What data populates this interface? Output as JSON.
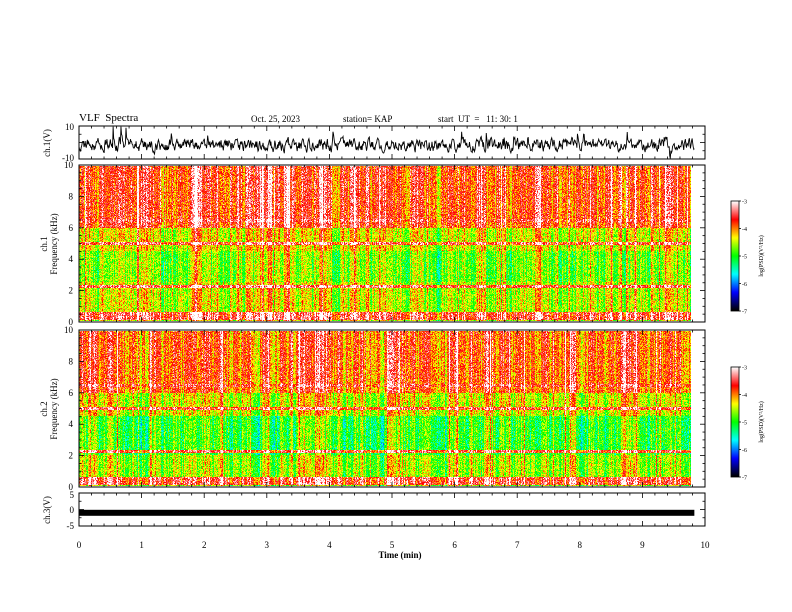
{
  "header": {
    "title": "VLF  Spectra",
    "date": "Oct. 25, 2023",
    "station": "station= KAP",
    "start": "start  UT  =   11: 30: 1"
  },
  "colors": {
    "line": "#000000",
    "colormap": [
      "#000000",
      "#0000ff",
      "#00ffff",
      "#00ff00",
      "#ffff00",
      "#ff0000",
      "#ffffff"
    ]
  },
  "chart_data": [
    {
      "type": "line",
      "panel": "ch1-waveform",
      "ylabel": "ch.1(V)",
      "ylim": [
        -10,
        10
      ],
      "yticks": [
        "10",
        "-10"
      ],
      "xlim": [
        0,
        10
      ],
      "x_data_end": 9.83
    },
    {
      "type": "heatmap",
      "panel": "ch1-spectrogram",
      "ylabel": "ch.1\nFrequency  (kHz)",
      "ylim": [
        0,
        10
      ],
      "yticks": [
        "0",
        "2",
        "4",
        "6",
        "8",
        "10"
      ],
      "xlim": [
        0,
        10
      ],
      "x_data_end": 9.83,
      "colorbar": {
        "label": "log(PSD)(V²/Hz)",
        "range": [
          -7,
          -3
        ],
        "ticks": [
          "-3",
          "-4",
          "-5",
          "-6",
          "-7"
        ]
      }
    },
    {
      "type": "heatmap",
      "panel": "ch2-spectrogram",
      "ylabel": "ch.2\nFrequency  (kHz)",
      "ylim": [
        0,
        10
      ],
      "yticks": [
        "0",
        "2",
        "4",
        "6",
        "8",
        "10"
      ],
      "xlim": [
        0,
        10
      ],
      "x_data_end": 9.83,
      "colorbar": {
        "label": "log(PSD)(V²/Hz)",
        "range": [
          -7,
          -3
        ],
        "ticks": [
          "-3",
          "-4",
          "-5",
          "-6",
          "-7"
        ]
      }
    },
    {
      "type": "line",
      "panel": "ch3-waveform",
      "ylabel": "ch.3(V)",
      "ylim": [
        -5,
        5
      ],
      "yticks": [
        "5",
        "0",
        "-5"
      ],
      "xlim": [
        0,
        10
      ],
      "x_data_end": 9.83,
      "level": -1
    }
  ],
  "xaxis": {
    "label": "Time  (min)",
    "ticks": [
      "0",
      "1",
      "2",
      "3",
      "4",
      "5",
      "6",
      "7",
      "8",
      "9",
      "10"
    ]
  }
}
